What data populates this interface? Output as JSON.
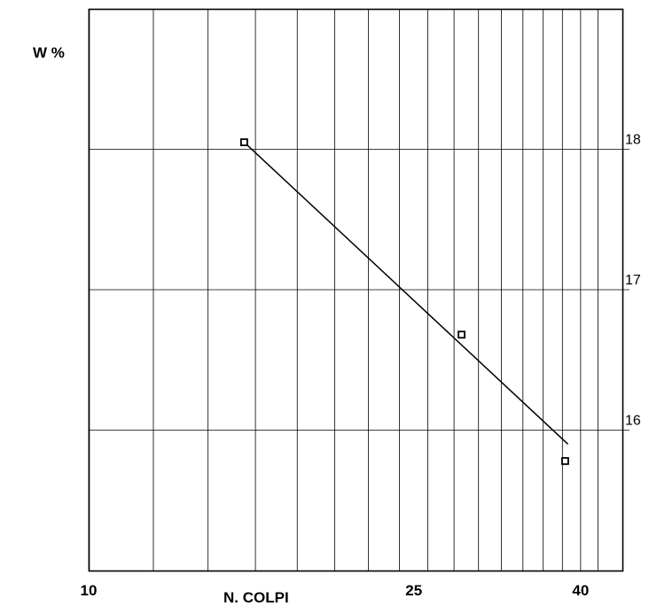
{
  "chart_data": {
    "type": "scatter",
    "ylabel": "W %",
    "xlabel": "N. COLPI",
    "x_scale": "log",
    "xlim": [
      10,
      45
    ],
    "ylim": [
      15,
      19
    ],
    "x_ticks": [
      10,
      25,
      40
    ],
    "y_ticks": [
      18,
      17,
      16
    ],
    "x_gridlines": [
      10,
      12,
      14,
      16,
      18,
      20,
      22,
      24,
      26,
      28,
      30,
      32,
      34,
      36,
      38,
      40,
      42
    ],
    "y_gridlines": [
      16,
      17,
      18
    ],
    "grid": true,
    "points": [
      {
        "x": 15.5,
        "y": 18.05
      },
      {
        "x": 28.6,
        "y": 16.68
      },
      {
        "x": 38.3,
        "y": 15.78
      }
    ],
    "trend_line": {
      "x": [
        15.5,
        38.6
      ],
      "y": [
        18.05,
        15.9
      ]
    }
  }
}
